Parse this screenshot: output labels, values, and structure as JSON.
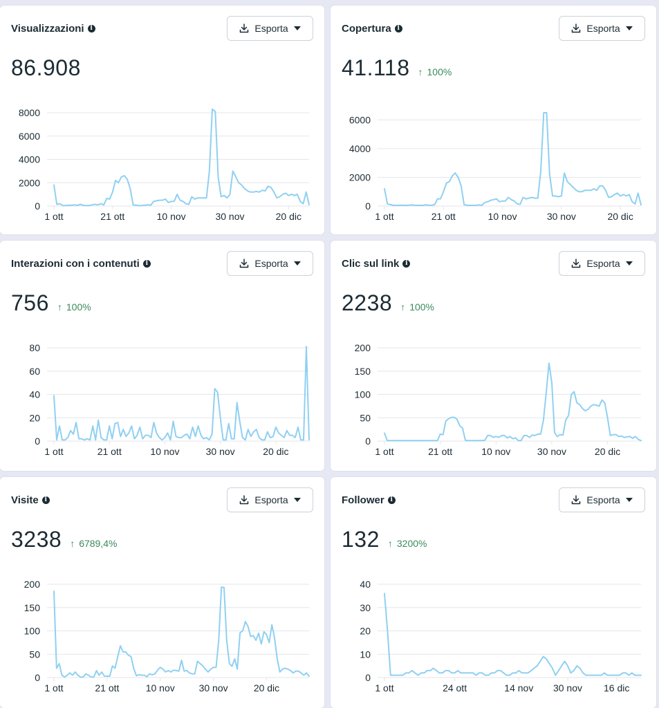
{
  "export_label": "Esporta",
  "colors": {
    "line": "#8fd0f2",
    "grid": "#e4e6eb",
    "axis_text": "#1c2b33",
    "positive": "#3a8a5c"
  },
  "cards": [
    {
      "title": "Visualizzazioni",
      "value": "86.908",
      "delta": "",
      "chart_data": {
        "type": "line",
        "yticks": [
          "0",
          "2000",
          "4000",
          "6000",
          "8000"
        ],
        "ylim": [
          0,
          8000
        ],
        "xticks": [
          {
            "label": "1 ott",
            "day": 0
          },
          {
            "label": "21 ott",
            "day": 20
          },
          {
            "label": "10 nov",
            "day": 40
          },
          {
            "label": "30 nov",
            "day": 60
          },
          {
            "label": "20 dic",
            "day": 80
          }
        ],
        "values": [
          1800,
          150,
          200,
          50,
          50,
          80,
          60,
          100,
          60,
          150,
          60,
          50,
          50,
          100,
          150,
          100,
          200,
          100,
          650,
          600,
          1200,
          2200,
          2000,
          2500,
          2600,
          2300,
          1500,
          100,
          80,
          50,
          50,
          80,
          100,
          80,
          400,
          450,
          500,
          500,
          600,
          300,
          400,
          400,
          1000,
          500,
          400,
          200,
          150,
          800,
          600,
          700,
          700,
          700,
          700,
          3000,
          8300,
          8100,
          2500,
          800,
          900,
          700,
          1000,
          3000,
          2500,
          2000,
          1800,
          1500,
          1300,
          1200,
          1200,
          1250,
          1200,
          1350,
          1300,
          1700,
          1600,
          1200,
          700,
          800,
          1000,
          1100,
          900,
          1000,
          900,
          1000,
          400,
          200,
          1200,
          100
        ]
      }
    },
    {
      "title": "Copertura",
      "value": "41.118",
      "delta": "100%",
      "chart_data": {
        "type": "line",
        "yticks": [
          "0",
          "2000",
          "4000",
          "6000"
        ],
        "ylim": [
          0,
          6500
        ],
        "xticks": [
          {
            "label": "1 ott",
            "day": 0
          },
          {
            "label": "21 ott",
            "day": 20
          },
          {
            "label": "10 nov",
            "day": 40
          },
          {
            "label": "30 nov",
            "day": 60
          },
          {
            "label": "20 dic",
            "day": 80
          }
        ],
        "values": [
          1200,
          150,
          100,
          50,
          50,
          50,
          60,
          50,
          50,
          80,
          60,
          50,
          50,
          50,
          80,
          60,
          50,
          100,
          500,
          500,
          1000,
          1600,
          1700,
          2100,
          2300,
          2000,
          1400,
          100,
          50,
          50,
          50,
          50,
          80,
          50,
          250,
          300,
          400,
          450,
          500,
          300,
          350,
          350,
          600,
          450,
          350,
          150,
          120,
          600,
          500,
          550,
          600,
          550,
          550,
          2400,
          6500,
          6500,
          2200,
          700,
          700,
          650,
          700,
          2300,
          1700,
          1500,
          1300,
          1100,
          1000,
          1000,
          1100,
          1100,
          1100,
          1200,
          1100,
          1400,
          1400,
          1100,
          600,
          650,
          800,
          900,
          700,
          800,
          700,
          800,
          300,
          150,
          900,
          80
        ]
      }
    },
    {
      "title": "Interazioni con i contenuti",
      "value": "756",
      "delta": "100%",
      "chart_data": {
        "type": "line",
        "yticks": [
          "0",
          "20",
          "40",
          "60",
          "80"
        ],
        "ylim": [
          0,
          80
        ],
        "xticks": [
          {
            "label": "1 ott",
            "day": 0
          },
          {
            "label": "21 ott",
            "day": 20
          },
          {
            "label": "10 nov",
            "day": 40
          },
          {
            "label": "30 nov",
            "day": 60
          },
          {
            "label": "20 dic",
            "day": 80
          }
        ],
        "values": [
          39,
          1,
          13,
          1,
          1,
          3,
          9,
          6,
          16,
          2,
          2,
          1,
          2,
          1,
          13,
          1,
          18,
          3,
          1,
          1,
          13,
          2,
          15,
          16,
          4,
          10,
          4,
          7,
          13,
          2,
          5,
          12,
          2,
          5,
          5,
          3,
          16,
          7,
          3,
          1,
          3,
          7,
          1,
          17,
          4,
          3,
          3,
          5,
          6,
          2,
          12,
          4,
          13,
          5,
          2,
          3,
          1,
          6,
          45,
          42,
          20,
          1,
          1,
          15,
          2,
          2,
          33,
          17,
          3,
          1,
          10,
          4,
          8,
          10,
          3,
          1,
          1,
          8,
          3,
          4,
          12,
          7,
          5,
          3,
          9,
          5,
          5,
          3,
          12,
          1,
          1,
          81,
          1
        ]
      }
    },
    {
      "title": "Clic sul link",
      "value": "2238",
      "delta": "100%",
      "chart_data": {
        "type": "line",
        "yticks": [
          "0",
          "50",
          "100",
          "150",
          "200"
        ],
        "ylim": [
          0,
          200
        ],
        "xticks": [
          {
            "label": "1 ott",
            "day": 0
          },
          {
            "label": "21 ott",
            "day": 20
          },
          {
            "label": "10 nov",
            "day": 40
          },
          {
            "label": "30 nov",
            "day": 60
          },
          {
            "label": "20 dic",
            "day": 80
          }
        ],
        "values": [
          17,
          1,
          1,
          1,
          1,
          1,
          1,
          1,
          1,
          1,
          1,
          1,
          1,
          1,
          1,
          1,
          1,
          1,
          1,
          1,
          15,
          14,
          43,
          48,
          51,
          51,
          47,
          33,
          28,
          2,
          1,
          1,
          1,
          1,
          1,
          1,
          2,
          12,
          12,
          8,
          10,
          8,
          12,
          12,
          7,
          10,
          5,
          7,
          1,
          1,
          12,
          12,
          8,
          13,
          12,
          15,
          15,
          45,
          104,
          167,
          125,
          18,
          10,
          14,
          13,
          45,
          55,
          100,
          106,
          82,
          78,
          70,
          65,
          68,
          75,
          78,
          77,
          75,
          88,
          82,
          50,
          12,
          14,
          14,
          10,
          11,
          8,
          9,
          10,
          6,
          10,
          4,
          1
        ]
      }
    },
    {
      "title": "Visite",
      "value": "3238",
      "delta": "6789,4%",
      "chart_data": {
        "type": "line",
        "yticks": [
          "0",
          "50",
          "100",
          "150",
          "200"
        ],
        "ylim": [
          0,
          200
        ],
        "xticks": [
          {
            "label": "1 ott",
            "day": 0
          },
          {
            "label": "21 ott",
            "day": 20
          },
          {
            "label": "10 nov",
            "day": 40
          },
          {
            "label": "30 nov",
            "day": 60
          },
          {
            "label": "20 dic",
            "day": 80
          }
        ],
        "values": [
          185,
          20,
          30,
          5,
          1,
          5,
          10,
          5,
          12,
          5,
          1,
          1,
          8,
          5,
          1,
          1,
          15,
          5,
          12,
          3,
          3,
          3,
          25,
          20,
          45,
          68,
          55,
          55,
          48,
          45,
          20,
          4,
          6,
          5,
          5,
          2,
          8,
          6,
          8,
          16,
          22,
          18,
          12,
          15,
          12,
          16,
          15,
          14,
          37,
          14,
          15,
          10,
          8,
          8,
          35,
          30,
          25,
          18,
          12,
          18,
          22,
          22,
          80,
          194,
          193,
          80,
          30,
          24,
          40,
          18,
          96,
          100,
          120,
          110,
          88,
          90,
          80,
          95,
          72,
          98,
          92,
          75,
          113,
          85,
          40,
          12,
          18,
          20,
          18,
          15,
          10,
          14,
          14,
          10,
          5,
          10,
          3
        ]
      }
    },
    {
      "title": "Follower",
      "value": "132",
      "delta": "3200%",
      "chart_data": {
        "type": "line",
        "yticks": [
          "0",
          "10",
          "20",
          "30",
          "40"
        ],
        "ylim": [
          0,
          40
        ],
        "xticks": [
          {
            "label": "1 ott",
            "day": 0
          },
          {
            "label": "24 ott",
            "day": 23
          },
          {
            "label": "14 nov",
            "day": 44
          },
          {
            "label": "30 nov",
            "day": 60
          },
          {
            "label": "16 dic",
            "day": 76
          }
        ],
        "values": [
          36,
          20,
          1,
          1,
          1,
          1,
          1,
          2,
          2,
          3,
          2,
          1,
          2,
          2,
          3,
          3,
          4,
          3,
          2,
          2,
          3,
          3,
          2,
          2,
          3,
          2,
          2,
          2,
          2,
          2,
          1,
          2,
          2,
          1,
          1,
          2,
          2,
          3,
          3,
          2,
          1,
          1,
          2,
          2,
          3,
          2,
          2,
          2,
          3,
          4,
          5,
          7,
          9,
          8,
          6,
          4,
          1,
          3,
          5,
          7,
          5,
          2,
          3,
          5,
          4,
          2,
          1,
          1,
          1,
          1,
          1,
          1,
          2,
          1,
          1,
          1,
          1,
          1,
          2,
          2,
          1,
          2,
          1,
          1,
          1
        ]
      }
    }
  ]
}
